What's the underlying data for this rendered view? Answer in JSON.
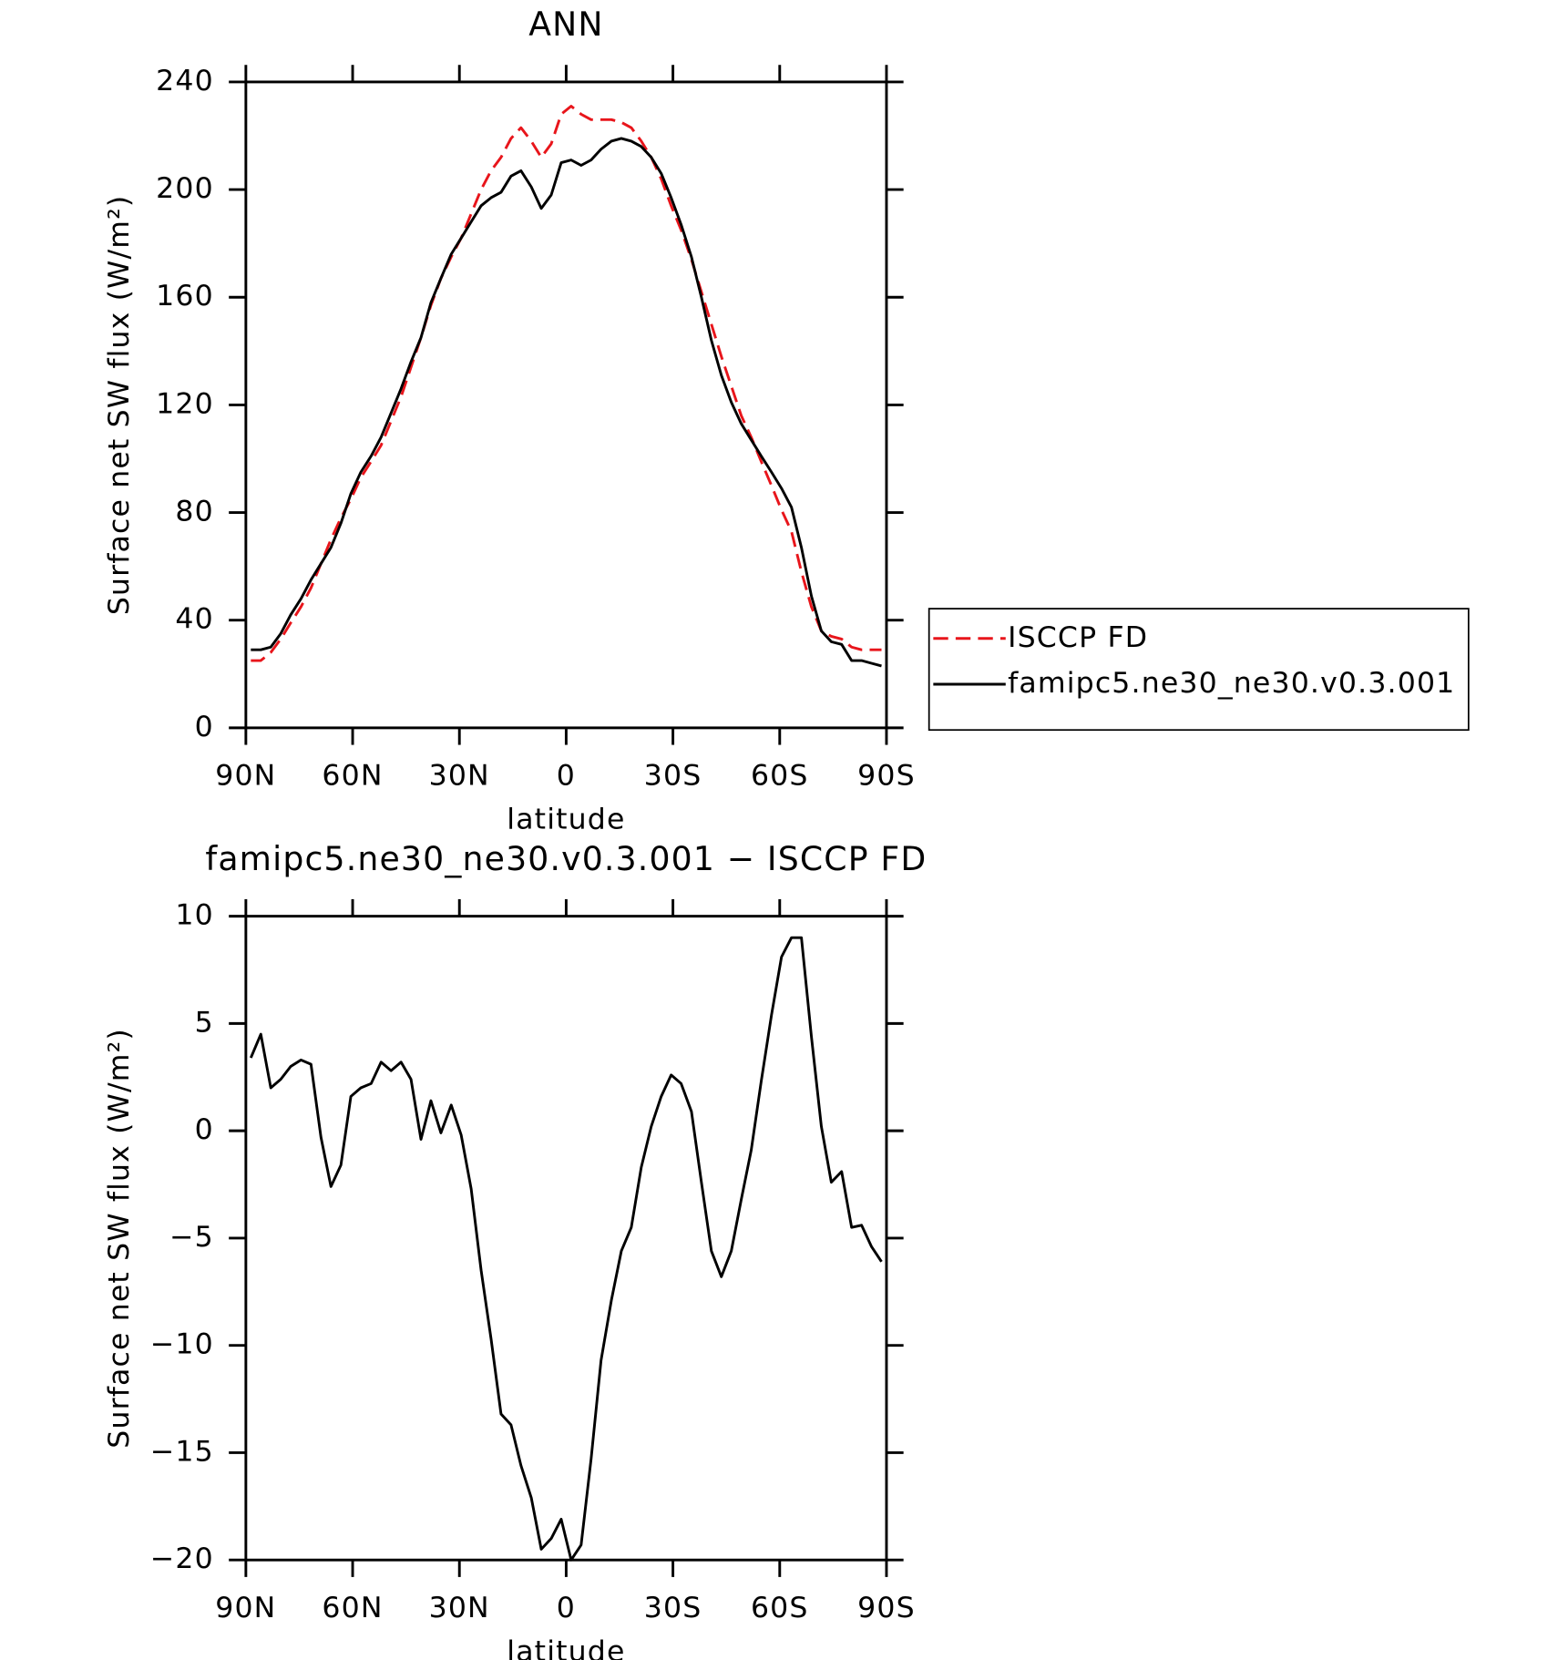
{
  "chart_data": [
    {
      "type": "line",
      "title": "ANN",
      "x_label": "latitude",
      "y_label": "Surface net SW flux (W/m²)",
      "x": [
        88.6,
        85.8,
        83.0,
        80.2,
        77.4,
        74.5,
        71.7,
        68.9,
        66.1,
        63.3,
        60.5,
        57.7,
        54.8,
        52.0,
        49.2,
        46.4,
        43.6,
        40.8,
        38.0,
        35.2,
        32.3,
        29.5,
        26.7,
        23.9,
        21.1,
        18.3,
        15.5,
        12.7,
        9.8,
        7.0,
        4.2,
        1.4,
        -1.4,
        -4.2,
        -7.0,
        -9.8,
        -12.7,
        -15.5,
        -18.3,
        -21.1,
        -23.9,
        -26.7,
        -29.5,
        -32.3,
        -35.2,
        -38.0,
        -40.8,
        -43.6,
        -46.4,
        -49.2,
        -52.0,
        -54.8,
        -57.7,
        -60.5,
        -63.3,
        -66.1,
        -68.9,
        -71.7,
        -74.5,
        -77.4,
        -80.2,
        -83.0,
        -85.8,
        -88.6
      ],
      "series": [
        {
          "name": "ISCCP FD",
          "color": "#e8151b",
          "dashed": true,
          "values": [
            25,
            25,
            28,
            33,
            39,
            45,
            52,
            61,
            70,
            78,
            85,
            93,
            99,
            105,
            114,
            123,
            134,
            145,
            157,
            167,
            175,
            182,
            191,
            200,
            207,
            212,
            219,
            223,
            218,
            212,
            217,
            228,
            231,
            228,
            226,
            226,
            226,
            225,
            223,
            218,
            212,
            204,
            194,
            185,
            174,
            162,
            150,
            138,
            127,
            116,
            108,
            99,
            90,
            81,
            73,
            58,
            45,
            36,
            34,
            33,
            30,
            29,
            29,
            29
          ]
        },
        {
          "name": "famipc5.ne30_ne30.v0.3.001",
          "color": "#000000",
          "dashed": false,
          "values": [
            29,
            29,
            30,
            35,
            42,
            48,
            55,
            61,
            67,
            76,
            87,
            95,
            101,
            108,
            117,
            126,
            136,
            145,
            158,
            167,
            176,
            182,
            188,
            194,
            197,
            199,
            205,
            207,
            201,
            193,
            198,
            210,
            211,
            209,
            211,
            215,
            218,
            219,
            218,
            216,
            212,
            206,
            197,
            187,
            175,
            160,
            144,
            131,
            121,
            113,
            107,
            101,
            95,
            89,
            82,
            67,
            49,
            36,
            32,
            31,
            25,
            25,
            24,
            23
          ]
        }
      ],
      "xlim": [
        90,
        -90
      ],
      "xticks": [
        {
          "value": 90,
          "label": "90N"
        },
        {
          "value": 60,
          "label": "60N"
        },
        {
          "value": 30,
          "label": "30N"
        },
        0,
        {
          "value": -30,
          "label": "30S"
        },
        {
          "value": -60,
          "label": "60S"
        },
        {
          "value": -90,
          "label": "90S"
        }
      ],
      "ylim": [
        0,
        240
      ],
      "yticks": [
        0,
        40,
        80,
        120,
        160,
        200,
        240
      ],
      "legend": "outside-right"
    },
    {
      "type": "line",
      "title": "famipc5.ne30_ne30.v0.3.001 − ISCCP FD",
      "x_label": "latitude",
      "y_label": "Surface net SW flux (W/m²)",
      "x": [
        88.6,
        85.8,
        83.0,
        80.2,
        77.4,
        74.5,
        71.7,
        68.9,
        66.1,
        63.3,
        60.5,
        57.7,
        54.8,
        52.0,
        49.2,
        46.4,
        43.6,
        40.8,
        38.0,
        35.2,
        32.3,
        29.5,
        26.7,
        23.9,
        21.1,
        18.3,
        15.5,
        12.7,
        9.8,
        7.0,
        4.2,
        1.4,
        -1.4,
        -4.2,
        -7.0,
        -9.8,
        -12.7,
        -15.5,
        -18.3,
        -21.1,
        -23.9,
        -26.7,
        -29.5,
        -32.3,
        -35.2,
        -38.0,
        -40.8,
        -43.6,
        -46.4,
        -49.2,
        -52.0,
        -54.8,
        -57.7,
        -60.5,
        -63.3,
        -66.1,
        -68.9,
        -71.7,
        -74.5,
        -77.4,
        -80.2,
        -83.0,
        -85.8,
        -88.6
      ],
      "color": "#000000",
      "values": [
        3.4,
        4.5,
        2.0,
        2.4,
        3.0,
        3.3,
        3.1,
        -0.3,
        -2.6,
        -1.6,
        1.6,
        2.0,
        2.2,
        3.2,
        2.8,
        3.2,
        2.4,
        -0.4,
        1.4,
        -0.1,
        1.2,
        -0.2,
        -2.7,
        -6.5,
        -9.7,
        -13.2,
        -13.7,
        -15.6,
        -17.1,
        -19.5,
        -19.0,
        -18.1,
        -20.0,
        -19.3,
        -15.3,
        -10.7,
        -7.9,
        -5.6,
        -4.5,
        -1.7,
        0.2,
        1.6,
        2.6,
        2.2,
        0.9,
        -2.4,
        -5.6,
        -6.8,
        -5.6,
        -3.2,
        -0.9,
        2.3,
        5.4,
        8.1,
        9.0,
        9.0,
        4.4,
        0.2,
        -2.4,
        -1.9,
        -4.5,
        -4.4,
        -5.4,
        -6.1
      ],
      "xlim": [
        90,
        -90
      ],
      "xticks": [
        {
          "value": 90,
          "label": "90N"
        },
        {
          "value": 60,
          "label": "60N"
        },
        {
          "value": 30,
          "label": "30N"
        },
        0,
        {
          "value": -30,
          "label": "30S"
        },
        {
          "value": -60,
          "label": "60S"
        },
        {
          "value": -90,
          "label": "90S"
        }
      ],
      "ylim": [
        -20,
        10
      ],
      "yticks": [
        {
          "value": -20,
          "label": "−20"
        },
        {
          "value": -15,
          "label": "−15"
        },
        {
          "value": -10,
          "label": "−10"
        },
        {
          "value": -5,
          "label": "−5"
        },
        0,
        5,
        10
      ]
    }
  ]
}
